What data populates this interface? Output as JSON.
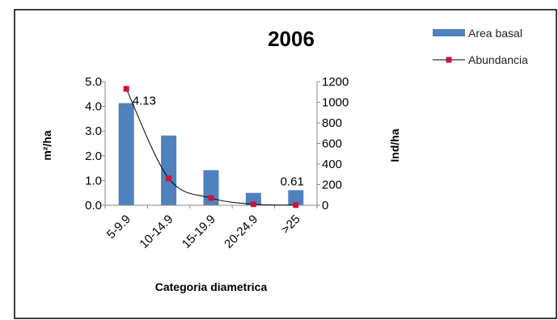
{
  "chart_data": {
    "type": "bar",
    "title": "2006",
    "xlabel": "Categoria diametrica",
    "ylabel": "m²/ha",
    "y2label": "Ind/ha",
    "categories": [
      "5-9.9",
      "10-14.9",
      "15-19.9",
      "20-24.9",
      ">25"
    ],
    "ylim": [
      0,
      5
    ],
    "y_ticks": [
      "0.0",
      "1.0",
      "2.0",
      "3.0",
      "4.0",
      "5.0"
    ],
    "y2lim": [
      0,
      1200
    ],
    "y2_ticks": [
      "0",
      "200",
      "400",
      "600",
      "800",
      "1000",
      "1200"
    ],
    "legend_position": "top-right",
    "series": [
      {
        "name": "Area basal",
        "type": "bar",
        "axis": "left",
        "color": "#4f81bd",
        "values": [
          4.13,
          2.82,
          1.42,
          0.5,
          0.61
        ]
      },
      {
        "name": "Abundancia",
        "type": "line",
        "axis": "right",
        "color": "#d0103a",
        "values": [
          1130,
          260,
          70,
          10,
          2
        ]
      }
    ],
    "data_labels": [
      {
        "series": "Area basal",
        "category": "5-9.9",
        "text": "4.13"
      },
      {
        "series": "Area basal",
        "category": ">25",
        "text": "0.61"
      }
    ]
  }
}
